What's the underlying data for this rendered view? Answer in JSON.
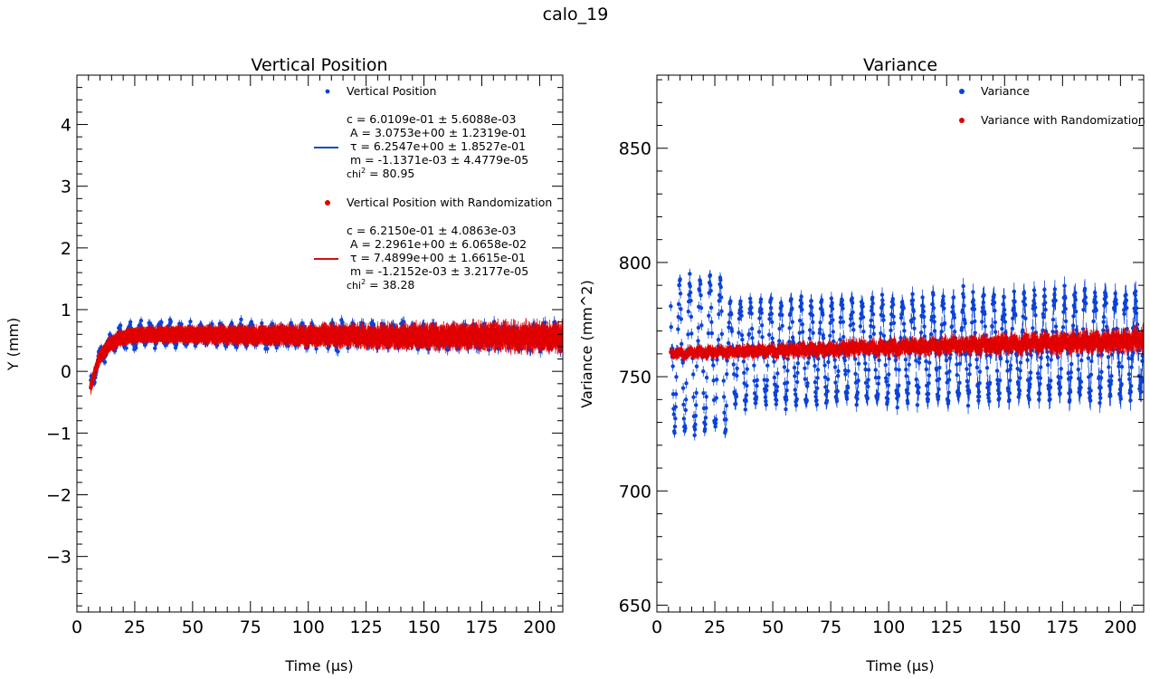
{
  "figure": {
    "suptitle": "calo_19"
  },
  "colors": {
    "blue": "#0b43d9",
    "red": "#e00000",
    "blue_fit": "#0a4fb5",
    "red_fit": "#d01010"
  },
  "chart_data": [
    {
      "type": "scatter",
      "title": "Vertical Position",
      "xlabel": "Time (µs)",
      "ylabel": "Y (mm)",
      "xlim": [
        0,
        210
      ],
      "ylim": [
        -3.9,
        4.8
      ],
      "xticks": [
        0,
        25,
        50,
        75,
        100,
        125,
        150,
        175,
        200
      ],
      "yticks": [
        -3,
        -2,
        -1,
        0,
        1,
        2,
        3,
        4
      ],
      "ytick_labels": [
        "−3",
        "−2",
        "−1",
        "0",
        "1",
        "2",
        "3",
        "4"
      ],
      "legend": {
        "placement": "top-right",
        "entries": [
          {
            "kind": "marker",
            "color": "blue",
            "label": "Vertical Position"
          },
          {
            "kind": "line",
            "color": "blue_fit",
            "lines": [
              "c = 6.0109e-01 ± 5.6088e-03",
              " A = 3.0753e+00 ± 1.2319e-01",
              " τ = 6.2547e+00 ± 1.8527e-01",
              " m = -1.1371e-03 ± 4.4779e-05"
            ],
            "chi_prefix": "chi",
            "chi_sup": "2",
            "chi_value": " = 80.95"
          },
          {
            "kind": "marker",
            "color": "red",
            "label": "Vertical Position with Randomization"
          },
          {
            "kind": "line",
            "color": "red_fit",
            "lines": [
              "c = 6.2150e-01 ± 4.0863e-03",
              " A = 2.2961e+00 ± 6.0658e-02",
              " τ = 7.4899e+00 ± 1.6615e-01",
              " m = -1.2152e-03 ± 3.2177e-05"
            ],
            "chi_prefix": "chi",
            "chi_sup": "2",
            "chi_value": " = 38.28"
          }
        ]
      },
      "series": [
        {
          "name": "Vertical Position",
          "color": "blue",
          "model": {
            "c": 0.60109,
            "A": 3.0753,
            "tau": 6.2547,
            "m": -0.0011371
          },
          "start_x": 6,
          "spread_start": 0.18,
          "spread_end": 0.32,
          "osc_amp": 0.14,
          "period": 4.37,
          "err": 0.09
        },
        {
          "name": "Vertical Position with Randomization",
          "color": "red",
          "model": {
            "c": 0.6215,
            "A": 2.2961,
            "tau": 7.4899,
            "m": -0.0012152
          },
          "start_x": 6,
          "spread_start": 0.04,
          "spread_end": 0.22,
          "osc_amp": 0.01,
          "period": 4.37,
          "err": 0.14
        }
      ]
    },
    {
      "type": "scatter",
      "title": "Variance",
      "xlabel": "Time (µs)",
      "ylabel": "Variance (mm^2)",
      "xlim": [
        0,
        210
      ],
      "ylim": [
        647,
        882
      ],
      "xticks": [
        0,
        25,
        50,
        75,
        100,
        125,
        150,
        175,
        200
      ],
      "yticks": [
        650,
        700,
        750,
        800,
        850
      ],
      "ytick_labels": [
        "650",
        "700",
        "750",
        "800",
        "850"
      ],
      "legend": {
        "placement": "top-right",
        "entries": [
          {
            "kind": "marker",
            "color": "blue",
            "label": "Variance"
          },
          {
            "kind": "marker",
            "color": "red",
            "label": "Variance with Randomization"
          }
        ]
      },
      "series": [
        {
          "name": "Variance",
          "color": "blue",
          "base_start": 760,
          "base_end": 765,
          "osc_amp": 18,
          "period": 4.37,
          "spread": 6,
          "err": 3,
          "start_x": 6
        },
        {
          "name": "Variance with Randomization",
          "color": "red",
          "base_start": 760,
          "base_end": 766,
          "osc_amp": 0.6,
          "period": 4.37,
          "spread": 3.5,
          "err": 2.5,
          "start_x": 6
        }
      ]
    }
  ]
}
